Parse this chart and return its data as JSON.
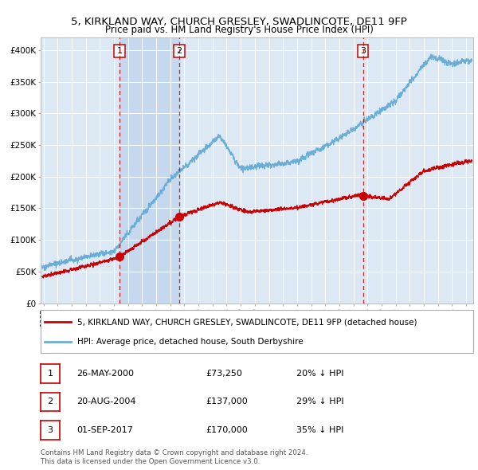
{
  "title": "5, KIRKLAND WAY, CHURCH GRESLEY, SWADLINCOTE, DE11 9FP",
  "subtitle": "Price paid vs. HM Land Registry's House Price Index (HPI)",
  "legend_line1": "5, KIRKLAND WAY, CHURCH GRESLEY, SWADLINCOTE, DE11 9FP (detached house)",
  "legend_line2": "HPI: Average price, detached house, South Derbyshire",
  "transactions": [
    {
      "num": 1,
      "date_label": "26-MAY-2000",
      "price": 73250,
      "pct": "20% ↓ HPI",
      "year": 2000.4
    },
    {
      "num": 2,
      "date_label": "20-AUG-2004",
      "price": 137000,
      "pct": "29% ↓ HPI",
      "year": 2004.63
    },
    {
      "num": 3,
      "date_label": "01-SEP-2017",
      "price": 170000,
      "pct": "35% ↓ HPI",
      "year": 2017.67
    }
  ],
  "footer1": "Contains HM Land Registry data © Crown copyright and database right 2024.",
  "footer2": "This data is licensed under the Open Government Licence v3.0.",
  "hpi_color": "#6aaed6",
  "price_paid_color": "#cc0000",
  "marker_color": "#cc0000",
  "vline_color": "#cc0000",
  "box_color": "#cc0000",
  "background_color": "#dce9f5",
  "shade_color": "#c5d8ee",
  "ylim": [
    0,
    420000
  ],
  "xlim_start": 1994.8,
  "xlim_end": 2025.5
}
